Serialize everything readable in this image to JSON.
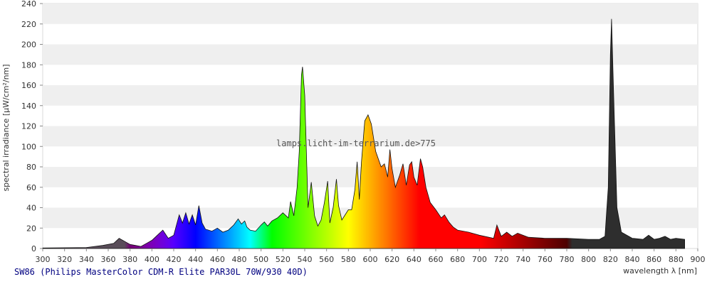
{
  "chart_data": {
    "type": "area",
    "title": "SW86 (Philips MasterColor CDM-R Elite PAR30L 70W/930 40D)",
    "xlabel": "wavelength λ [nm]",
    "ylabel": "spectral irradiance [µW/cm²/nm]",
    "watermark": "lamps.licht-im-terrarium.de>775",
    "xlim": [
      300,
      900
    ],
    "ylim": [
      0,
      240
    ],
    "x_ticks": [
      300,
      320,
      340,
      360,
      380,
      400,
      420,
      440,
      460,
      480,
      500,
      520,
      540,
      560,
      580,
      600,
      620,
      640,
      660,
      680,
      700,
      720,
      740,
      760,
      780,
      800,
      820,
      840,
      860,
      880,
      900
    ],
    "y_ticks": [
      0,
      20,
      40,
      60,
      80,
      100,
      120,
      140,
      160,
      180,
      200,
      220,
      240
    ],
    "grid": "horizontal bands",
    "fill": "wavelength spectrum colors",
    "x": [
      300,
      340,
      355,
      365,
      370,
      380,
      385,
      390,
      395,
      400,
      405,
      410,
      415,
      420,
      425,
      428,
      431,
      434,
      437,
      440,
      443,
      446,
      449,
      455,
      460,
      465,
      470,
      475,
      479,
      482,
      485,
      487,
      490,
      495,
      500,
      503,
      506,
      510,
      515,
      520,
      525,
      527,
      530,
      533,
      535,
      537,
      538,
      540,
      543,
      546,
      549,
      552,
      555,
      558,
      561,
      563,
      566,
      569,
      571,
      574,
      577,
      580,
      583,
      586,
      588,
      590,
      592,
      595,
      598,
      601,
      605,
      610,
      613,
      616,
      618,
      620,
      623,
      627,
      630,
      633,
      636,
      638,
      640,
      643,
      646,
      648,
      651,
      655,
      660,
      665,
      668,
      672,
      676,
      680,
      690,
      700,
      713,
      716,
      720,
      725,
      730,
      735,
      745,
      760,
      780,
      800,
      810,
      815,
      818,
      820,
      821,
      823,
      826,
      830,
      840,
      850,
      855,
      860,
      865,
      870,
      875,
      880,
      888
    ],
    "values": [
      0.5,
      1,
      3,
      5,
      10,
      4,
      3,
      2,
      5,
      8,
      13,
      18,
      10,
      13,
      33,
      25,
      35,
      24,
      33,
      23,
      42,
      25,
      19,
      17,
      20,
      16,
      18,
      23,
      29,
      24,
      27,
      21,
      18,
      17,
      23,
      26,
      22,
      27,
      30,
      35,
      30,
      46,
      32,
      60,
      95,
      170,
      178,
      150,
      40,
      65,
      32,
      22,
      28,
      45,
      66,
      25,
      40,
      68,
      42,
      28,
      33,
      38,
      38,
      58,
      85,
      48,
      85,
      125,
      131,
      122,
      95,
      80,
      83,
      70,
      97,
      78,
      60,
      72,
      83,
      62,
      82,
      85,
      70,
      62,
      88,
      80,
      60,
      45,
      38,
      30,
      33,
      26,
      21,
      18,
      16,
      13,
      10,
      23,
      12,
      16,
      12,
      15,
      11,
      10,
      10,
      9,
      9,
      12,
      60,
      190,
      225,
      150,
      40,
      16,
      10,
      9,
      13,
      9,
      10,
      12,
      9,
      10,
      9
    ]
  }
}
